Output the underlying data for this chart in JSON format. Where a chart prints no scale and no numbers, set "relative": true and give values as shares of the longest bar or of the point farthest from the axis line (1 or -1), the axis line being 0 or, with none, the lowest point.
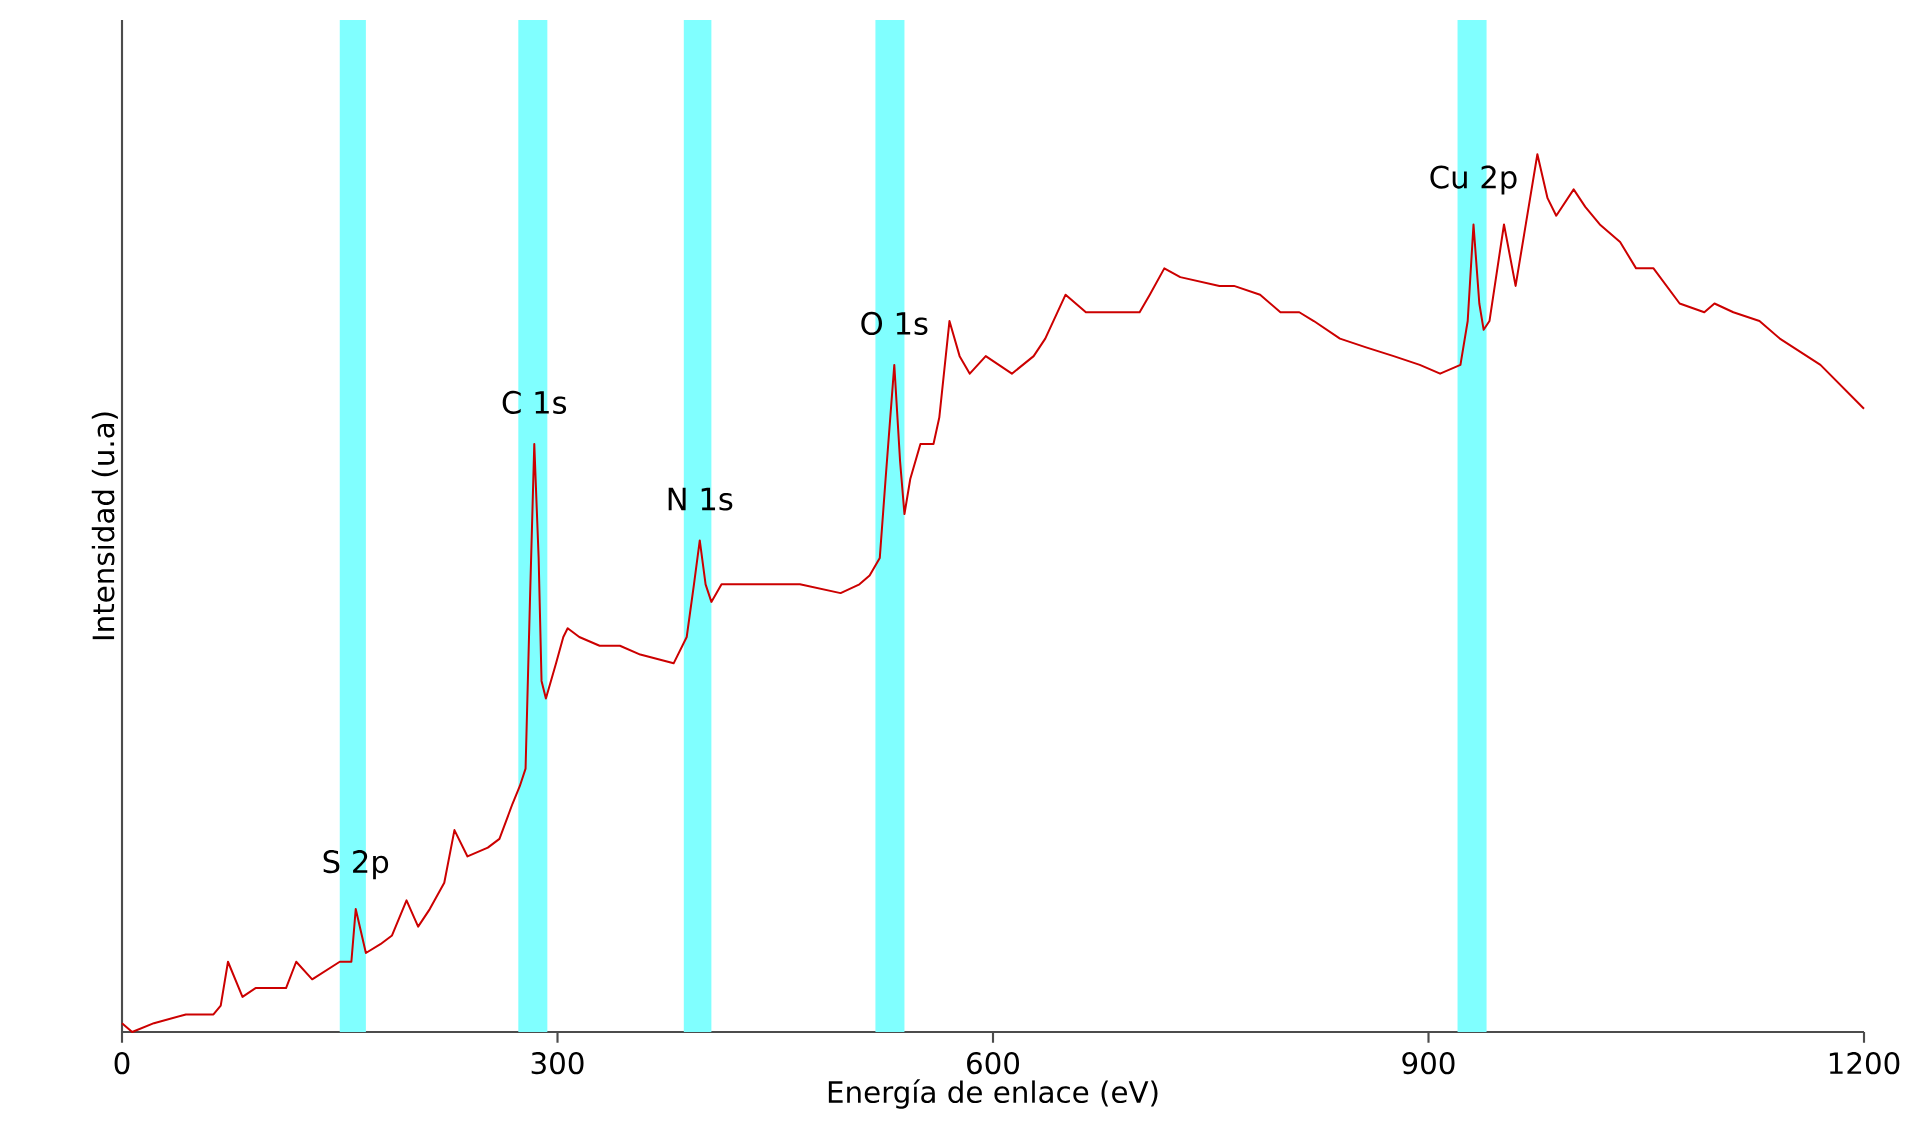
{
  "chart_data": {
    "type": "line",
    "relative": true,
    "xlabel": "Energía de enlace (eV)",
    "ylabel": "Intensidad (u.a)",
    "xlim": [
      0,
      1200
    ],
    "xticks": [
      0,
      300,
      600,
      900,
      1200
    ],
    "marker": "none",
    "line_style": "solid",
    "series": [
      {
        "color": "#cc0000",
        "x": [
          0,
          7,
          22,
          44,
          63,
          68,
          73,
          83,
          92,
          113,
          120,
          131,
          150,
          158,
          161,
          168,
          178,
          186,
          196,
          204,
          212,
          222,
          229,
          238,
          252,
          260,
          269,
          274,
          278,
          281,
          284,
          287,
          289,
          292,
          299,
          304,
          307,
          315,
          329,
          343,
          357,
          380,
          389,
          394,
          398,
          402,
          406,
          413,
          439,
          467,
          495,
          508,
          515,
          522,
          526,
          532,
          536,
          539,
          543,
          550,
          559,
          563,
          570,
          577,
          584,
          595,
          613,
          628,
          636,
          650,
          664,
          701,
          708,
          718,
          729,
          756,
          766,
          784,
          798,
          811,
          821,
          839,
          857,
          876,
          894,
          908,
          922,
          927,
          931,
          935,
          938,
          942,
          952,
          960,
          970,
          975,
          982,
          988,
          1000,
          1008,
          1018,
          1032,
          1043,
          1055,
          1073,
          1090,
          1097,
          1110,
          1128,
          1142,
          1170,
          1200
        ],
        "values": [
          0.01,
          0.0,
          0.01,
          0.02,
          0.02,
          0.03,
          0.08,
          0.04,
          0.05,
          0.05,
          0.08,
          0.06,
          0.08,
          0.08,
          0.14,
          0.09,
          0.1,
          0.11,
          0.15,
          0.12,
          0.14,
          0.17,
          0.23,
          0.2,
          0.21,
          0.22,
          0.26,
          0.28,
          0.3,
          0.49,
          0.67,
          0.54,
          0.4,
          0.38,
          0.42,
          0.45,
          0.46,
          0.45,
          0.44,
          0.44,
          0.43,
          0.42,
          0.45,
          0.51,
          0.56,
          0.51,
          0.49,
          0.51,
          0.51,
          0.51,
          0.5,
          0.51,
          0.52,
          0.54,
          0.63,
          0.76,
          0.65,
          0.59,
          0.63,
          0.67,
          0.67,
          0.7,
          0.81,
          0.77,
          0.75,
          0.77,
          0.75,
          0.77,
          0.79,
          0.84,
          0.82,
          0.82,
          0.84,
          0.87,
          0.86,
          0.85,
          0.85,
          0.84,
          0.82,
          0.82,
          0.81,
          0.79,
          0.78,
          0.77,
          0.76,
          0.75,
          0.76,
          0.81,
          0.92,
          0.83,
          0.8,
          0.81,
          0.92,
          0.85,
          0.95,
          1.0,
          0.95,
          0.93,
          0.96,
          0.94,
          0.92,
          0.9,
          0.87,
          0.87,
          0.83,
          0.82,
          0.83,
          0.82,
          0.81,
          0.79,
          0.76,
          0.71
        ]
      }
    ],
    "bands": [
      {
        "axis": "x",
        "from": 150,
        "to": 168,
        "color": "#80ffff"
      },
      {
        "axis": "x",
        "from": 273,
        "to": 293,
        "color": "#80ffff"
      },
      {
        "axis": "x",
        "from": 387,
        "to": 406,
        "color": "#80ffff"
      },
      {
        "axis": "x",
        "from": 519,
        "to": 539,
        "color": "#80ffff"
      },
      {
        "axis": "x",
        "from": 920,
        "to": 940,
        "color": "#80ffff"
      }
    ],
    "annotations": [
      {
        "text": "S 2p",
        "x": 161,
        "y": 0.14
      },
      {
        "text": "C 1s",
        "x": 284,
        "y": 0.67
      },
      {
        "text": "N 1s",
        "x": 398,
        "y": 0.56
      },
      {
        "text": "O 1s",
        "x": 532,
        "y": 0.76
      },
      {
        "text": "Cu 2p",
        "x": 931,
        "y": 0.92
      }
    ]
  }
}
